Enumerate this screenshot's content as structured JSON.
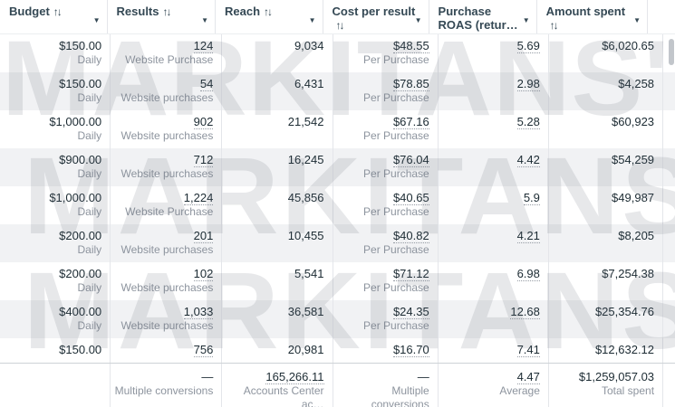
{
  "watermark": {
    "line1": "MARKITANS'",
    "line2": "MARKITANS",
    "line3": "MARKITANS"
  },
  "header": {
    "sort_glyph": "↑↓",
    "caret_glyph": "▼",
    "columns": [
      {
        "label": "Budget"
      },
      {
        "label": "Results"
      },
      {
        "label": "Reach"
      },
      {
        "label": "Cost per result"
      },
      {
        "label": "Purchase",
        "label2": "ROAS (retur…"
      },
      {
        "label": "Amount spent"
      }
    ]
  },
  "rows": [
    {
      "budget": "$150.00",
      "budget_sub": "Daily",
      "results": "124",
      "results_sub": "Website Purchase",
      "reach": "9,034",
      "cpr": "$48.55",
      "cpr_sub": "Per Purchase",
      "roas": "5.69",
      "spent": "$6,020.65"
    },
    {
      "budget": "$150.00",
      "budget_sub": "Daily",
      "results": "54",
      "results_sub": "Website purchases",
      "reach": "6,431",
      "cpr": "$78.85",
      "cpr_sub": "Per Purchase",
      "roas": "2.98",
      "spent": "$4,258"
    },
    {
      "budget": "$1,000.00",
      "budget_sub": "Daily",
      "results": "902",
      "results_sub": "Website purchases",
      "reach": "21,542",
      "cpr": "$67.16",
      "cpr_sub": "Per Purchase",
      "roas": "5.28",
      "spent": "$60,923"
    },
    {
      "budget": "$900.00",
      "budget_sub": "Daily",
      "results": "712",
      "results_sub": "Website purchases",
      "reach": "16,245",
      "cpr": "$76.04",
      "cpr_sub": "Per Purchase",
      "roas": "4.42",
      "spent": "$54,259"
    },
    {
      "budget": "$1,000.00",
      "budget_sub": "Daily",
      "results": "1,224",
      "results_sub": "Website Purchase",
      "reach": "45,856",
      "cpr": "$40.65",
      "cpr_sub": "Per Purchase",
      "roas": "5.9",
      "spent": "$49,987"
    },
    {
      "budget": "$200.00",
      "budget_sub": "Daily",
      "results": "201",
      "results_sub": "Website purchases",
      "reach": "10,455",
      "cpr": "$40.82",
      "cpr_sub": "Per Purchase",
      "roas": "4.21",
      "spent": "$8,205"
    },
    {
      "budget": "$200.00",
      "budget_sub": "Daily",
      "results": "102",
      "results_sub": "Website purchases",
      "reach": "5,541",
      "cpr": "$71.12",
      "cpr_sub": "Per Purchase",
      "roas": "6.98",
      "spent": "$7,254.38"
    },
    {
      "budget": "$400.00",
      "budget_sub": "Daily",
      "results": "1,033",
      "results_sub": "Website purchases",
      "reach": "36,581",
      "cpr": "$24.35",
      "cpr_sub": "Per Purchase",
      "roas": "12.68",
      "spent": "$25,354.76"
    },
    {
      "budget": "$150.00",
      "budget_sub": "",
      "results": "756",
      "results_sub": "",
      "reach": "20,981",
      "cpr": "$16.70",
      "cpr_sub": "",
      "roas": "7.41",
      "spent": "$12,632.12",
      "compact": true
    }
  ],
  "footer": {
    "results": "—",
    "results_sub": "Multiple conversions",
    "reach": "165,266.11",
    "reach_sub": "Accounts Center ac…",
    "cpr": "—",
    "cpr_sub": "Multiple conversions",
    "roas": "4.47",
    "roas_sub": "Average",
    "spent": "$1,259,057.03",
    "spent_sub": "Total spent"
  },
  "colors": {
    "header_text": "#344854",
    "value_text": "#1c2b33",
    "sub_text": "#8d949e",
    "stripe": "#f1f2f4",
    "border": "#e4e6ea",
    "watermark": "#dfe1e5"
  }
}
